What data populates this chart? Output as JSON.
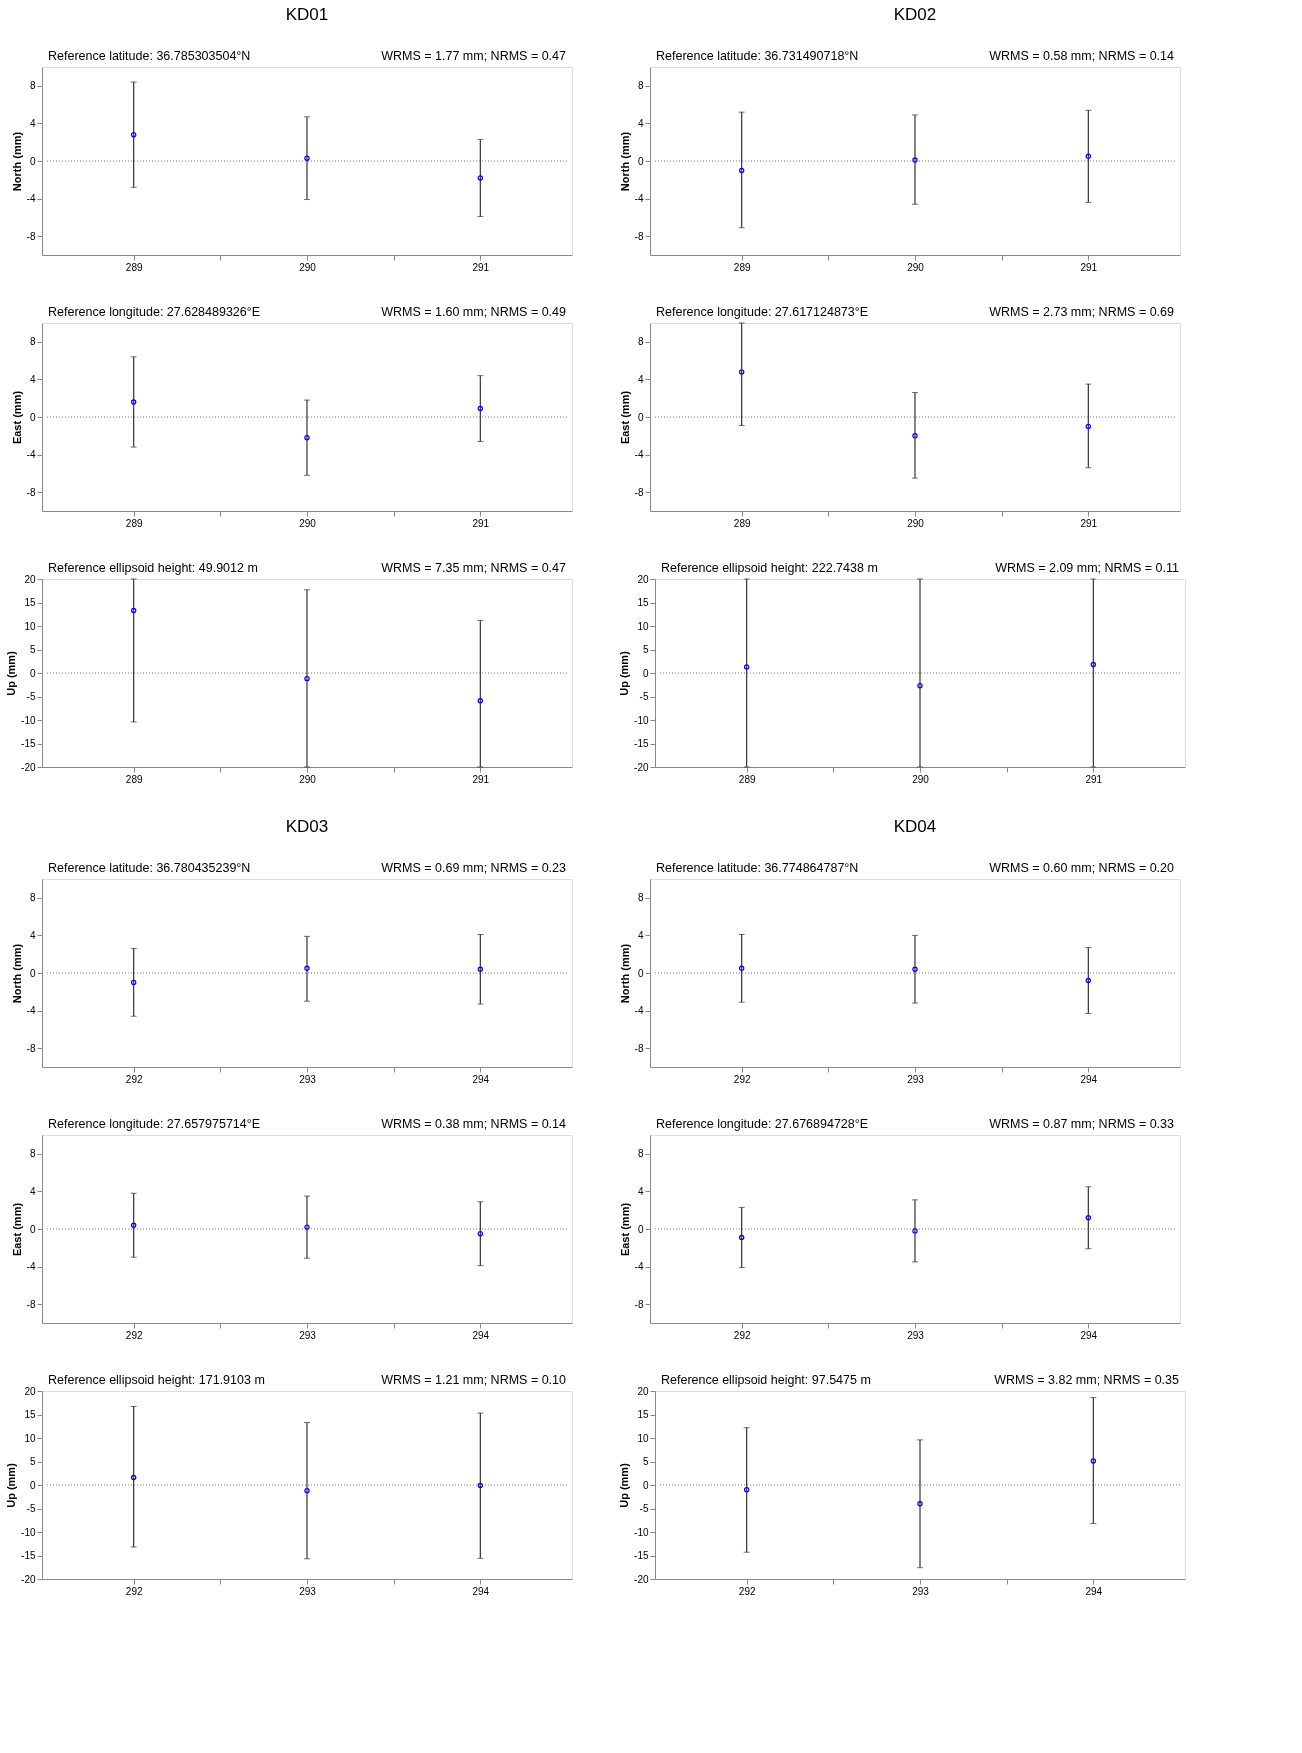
{
  "chart_data": [
    {
      "type": "scatter",
      "title": "KD01",
      "subtitle": "Reference latitude: 36.785303504°N",
      "annotations": [
        "WRMS = 1.77 mm; NRMS = 0.47"
      ],
      "ylabel": "North (mm)",
      "x": [
        289,
        290,
        291
      ],
      "xlim": [
        288.5,
        291.5
      ],
      "xticks": [
        289,
        {
          "value": 289.5,
          "label": null
        },
        290,
        {
          "value": 290.5,
          "label": null
        },
        291
      ],
      "ylim": [
        -10,
        10
      ],
      "yticks": [
        -8,
        -4,
        0,
        4,
        8
      ],
      "marker": "circle",
      "ref_lines": [
        {
          "axis": "y",
          "value": 0,
          "line_style": "dotted"
        }
      ],
      "series": [
        {
          "color": "#0000ff",
          "values": [
            2.8,
            0.3,
            -1.8
          ],
          "errors": [
            [
              -2.8,
              8.4
            ],
            [
              -4.1,
              4.7
            ],
            [
              -5.9,
              2.3
            ]
          ]
        }
      ]
    },
    {
      "type": "scatter",
      "title": "KD02",
      "subtitle": "Reference latitude: 36.731490718°N",
      "annotations": [
        "WRMS = 0.58 mm; NRMS = 0.14"
      ],
      "ylabel": "North (mm)",
      "x": [
        289,
        290,
        291
      ],
      "xlim": [
        288.5,
        291.5
      ],
      "xticks": [
        289,
        {
          "value": 289.5,
          "label": null
        },
        290,
        {
          "value": 290.5,
          "label": null
        },
        291
      ],
      "ylim": [
        -10,
        10
      ],
      "yticks": [
        -8,
        -4,
        0,
        4,
        8
      ],
      "marker": "circle",
      "ref_lines": [
        {
          "axis": "y",
          "value": 0,
          "line_style": "dotted"
        }
      ],
      "series": [
        {
          "color": "#0000ff",
          "values": [
            -1.0,
            0.1,
            0.5
          ],
          "errors": [
            [
              -7.1,
              5.2
            ],
            [
              -4.6,
              4.9
            ],
            [
              -4.4,
              5.4
            ]
          ]
        }
      ]
    },
    {
      "type": "scatter",
      "subtitle": "Reference longitude: 27.628489326°E",
      "annotations": [
        "WRMS = 1.60 mm; NRMS = 0.49"
      ],
      "ylabel": "East (mm)",
      "x": [
        289,
        290,
        291
      ],
      "xlim": [
        288.5,
        291.5
      ],
      "xticks": [
        289,
        {
          "value": 289.5,
          "label": null
        },
        290,
        {
          "value": 290.5,
          "label": null
        },
        291
      ],
      "ylim": [
        -10,
        10
      ],
      "yticks": [
        -8,
        -4,
        0,
        4,
        8
      ],
      "marker": "circle",
      "ref_lines": [
        {
          "axis": "y",
          "value": 0,
          "line_style": "dotted"
        }
      ],
      "series": [
        {
          "color": "#0000ff",
          "values": [
            1.6,
            -2.2,
            0.9
          ],
          "errors": [
            [
              -3.2,
              6.4
            ],
            [
              -6.2,
              1.8
            ],
            [
              -2.6,
              4.4
            ]
          ]
        }
      ]
    },
    {
      "type": "scatter",
      "subtitle": "Reference longitude: 27.617124873°E",
      "annotations": [
        "WRMS = 2.73 mm; NRMS = 0.69"
      ],
      "ylabel": "East (mm)",
      "x": [
        289,
        290,
        291
      ],
      "xlim": [
        288.5,
        291.5
      ],
      "xticks": [
        289,
        {
          "value": 289.5,
          "label": null
        },
        290,
        {
          "value": 290.5,
          "label": null
        },
        291
      ],
      "ylim": [
        -10,
        10
      ],
      "yticks": [
        -8,
        -4,
        0,
        4,
        8
      ],
      "marker": "circle",
      "ref_lines": [
        {
          "axis": "y",
          "value": 0,
          "line_style": "dotted"
        }
      ],
      "series": [
        {
          "color": "#0000ff",
          "values": [
            4.8,
            -2.0,
            -1.0
          ],
          "errors": [
            [
              -0.9,
              10
            ],
            [
              -6.5,
              2.6
            ],
            [
              -5.4,
              3.5
            ]
          ]
        }
      ]
    },
    {
      "type": "scatter",
      "subtitle": "Reference ellipsoid height: 49.9012 m",
      "annotations": [
        "WRMS = 7.35 mm; NRMS = 0.47"
      ],
      "ylabel": "Up (mm)",
      "x": [
        289,
        290,
        291
      ],
      "xlim": [
        288.5,
        291.5
      ],
      "xticks": [
        289,
        {
          "value": 289.5,
          "label": null
        },
        290,
        {
          "value": 290.5,
          "label": null
        },
        291
      ],
      "ylim": [
        -20,
        20
      ],
      "yticks": [
        -20,
        -15,
        -10,
        -5,
        0,
        5,
        10,
        15,
        20
      ],
      "marker": "circle",
      "ref_lines": [
        {
          "axis": "y",
          "value": 0,
          "line_style": "dotted"
        }
      ],
      "series": [
        {
          "color": "#0000ff",
          "values": [
            13.3,
            -1.2,
            -5.9
          ],
          "errors": [
            [
              -10.4,
              20
            ],
            [
              -20,
              17.7
            ],
            [
              -20,
              11.2
            ]
          ]
        }
      ]
    },
    {
      "type": "scatter",
      "subtitle": "Reference ellipsoid height: 222.7438 m",
      "annotations": [
        "WRMS = 2.09 mm; NRMS = 0.11"
      ],
      "ylabel": "Up (mm)",
      "x": [
        289,
        290,
        291
      ],
      "xlim": [
        288.5,
        291.5
      ],
      "xticks": [
        289,
        {
          "value": 289.5,
          "label": null
        },
        290,
        {
          "value": 290.5,
          "label": null
        },
        291
      ],
      "ylim": [
        -20,
        20
      ],
      "yticks": [
        -20,
        -15,
        -10,
        -5,
        0,
        5,
        10,
        15,
        20
      ],
      "marker": "circle",
      "ref_lines": [
        {
          "axis": "y",
          "value": 0,
          "line_style": "dotted"
        }
      ],
      "series": [
        {
          "color": "#0000ff",
          "values": [
            1.3,
            -2.7,
            1.8
          ],
          "errors": [
            [
              -20,
              20
            ],
            [
              -20,
              20
            ],
            [
              -20,
              20
            ]
          ]
        }
      ]
    },
    {
      "type": "scatter",
      "title": "KD03",
      "subtitle": "Reference latitude: 36.780435239°N",
      "annotations": [
        "WRMS = 0.69 mm; NRMS = 0.23"
      ],
      "ylabel": "North (mm)",
      "x": [
        292,
        293,
        294
      ],
      "xlim": [
        291.5,
        294.5
      ],
      "xticks": [
        292,
        {
          "value": 292.5,
          "label": null
        },
        293,
        {
          "value": 293.5,
          "label": null
        },
        294
      ],
      "ylim": [
        -10,
        10
      ],
      "yticks": [
        -8,
        -4,
        0,
        4,
        8
      ],
      "marker": "circle",
      "ref_lines": [
        {
          "axis": "y",
          "value": 0,
          "line_style": "dotted"
        }
      ],
      "series": [
        {
          "color": "#0000ff",
          "values": [
            -1.0,
            0.5,
            0.4
          ],
          "errors": [
            [
              -4.6,
              2.6
            ],
            [
              -3.0,
              3.9
            ],
            [
              -3.3,
              4.1
            ]
          ]
        }
      ]
    },
    {
      "type": "scatter",
      "title": "KD04",
      "subtitle": "Reference latitude: 36.774864787°N",
      "annotations": [
        "WRMS = 0.60 mm; NRMS = 0.20"
      ],
      "ylabel": "North (mm)",
      "x": [
        292,
        293,
        294
      ],
      "xlim": [
        291.5,
        294.5
      ],
      "xticks": [
        292,
        {
          "value": 292.5,
          "label": null
        },
        293,
        {
          "value": 293.5,
          "label": null
        },
        294
      ],
      "ylim": [
        -10,
        10
      ],
      "yticks": [
        -8,
        -4,
        0,
        4,
        8
      ],
      "marker": "circle",
      "ref_lines": [
        {
          "axis": "y",
          "value": 0,
          "line_style": "dotted"
        }
      ],
      "series": [
        {
          "color": "#0000ff",
          "values": [
            0.5,
            0.4,
            -0.8
          ],
          "errors": [
            [
              -3.1,
              4.1
            ],
            [
              -3.2,
              4.0
            ],
            [
              -4.3,
              2.7
            ]
          ]
        }
      ]
    },
    {
      "type": "scatter",
      "subtitle": "Reference longitude: 27.657975714°E",
      "annotations": [
        "WRMS = 0.38 mm; NRMS = 0.14"
      ],
      "ylabel": "East (mm)",
      "x": [
        292,
        293,
        294
      ],
      "xlim": [
        291.5,
        294.5
      ],
      "xticks": [
        292,
        {
          "value": 292.5,
          "label": null
        },
        293,
        {
          "value": 293.5,
          "label": null
        },
        294
      ],
      "ylim": [
        -10,
        10
      ],
      "yticks": [
        -8,
        -4,
        0,
        4,
        8
      ],
      "marker": "circle",
      "ref_lines": [
        {
          "axis": "y",
          "value": 0,
          "line_style": "dotted"
        }
      ],
      "series": [
        {
          "color": "#0000ff",
          "values": [
            0.4,
            0.2,
            -0.5
          ],
          "errors": [
            [
              -3.0,
              3.8
            ],
            [
              -3.1,
              3.5
            ],
            [
              -3.9,
              2.9
            ]
          ]
        }
      ]
    },
    {
      "type": "scatter",
      "subtitle": "Reference longitude: 27.676894728°E",
      "annotations": [
        "WRMS = 0.87 mm; NRMS = 0.33"
      ],
      "ylabel": "East (mm)",
      "x": [
        292,
        293,
        294
      ],
      "xlim": [
        291.5,
        294.5
      ],
      "xticks": [
        292,
        {
          "value": 292.5,
          "label": null
        },
        293,
        {
          "value": 293.5,
          "label": null
        },
        294
      ],
      "ylim": [
        -10,
        10
      ],
      "yticks": [
        -8,
        -4,
        0,
        4,
        8
      ],
      "marker": "circle",
      "ref_lines": [
        {
          "axis": "y",
          "value": 0,
          "line_style": "dotted"
        }
      ],
      "series": [
        {
          "color": "#0000ff",
          "values": [
            -0.9,
            -0.2,
            1.2
          ],
          "errors": [
            [
              -4.1,
              2.3
            ],
            [
              -3.5,
              3.1
            ],
            [
              -2.1,
              4.5
            ]
          ]
        }
      ]
    },
    {
      "type": "scatter",
      "subtitle": "Reference ellipsoid height: 171.9103 m",
      "annotations": [
        "WRMS = 1.21 mm; NRMS = 0.10"
      ],
      "ylabel": "Up (mm)",
      "x": [
        292,
        293,
        294
      ],
      "xlim": [
        291.5,
        294.5
      ],
      "xticks": [
        292,
        {
          "value": 292.5,
          "label": null
        },
        293,
        {
          "value": 293.5,
          "label": null
        },
        294
      ],
      "ylim": [
        -20,
        20
      ],
      "yticks": [
        -20,
        -15,
        -10,
        -5,
        0,
        5,
        10,
        15,
        20
      ],
      "marker": "circle",
      "ref_lines": [
        {
          "axis": "y",
          "value": 0,
          "line_style": "dotted"
        }
      ],
      "series": [
        {
          "color": "#0000ff",
          "values": [
            1.6,
            -1.2,
            -0.1
          ],
          "errors": [
            [
              -13.2,
              16.7
            ],
            [
              -15.7,
              13.3
            ],
            [
              -15.6,
              15.3
            ]
          ]
        }
      ]
    },
    {
      "type": "scatter",
      "subtitle": "Reference ellipsoid height: 97.5475 m",
      "annotations": [
        "WRMS = 3.82 mm; NRMS = 0.35"
      ],
      "ylabel": "Up (mm)",
      "x": [
        292,
        293,
        294
      ],
      "xlim": [
        291.5,
        294.5
      ],
      "xticks": [
        292,
        {
          "value": 292.5,
          "label": null
        },
        293,
        {
          "value": 293.5,
          "label": null
        },
        294
      ],
      "ylim": [
        -20,
        20
      ],
      "yticks": [
        -20,
        -15,
        -10,
        -5,
        0,
        5,
        10,
        15,
        20
      ],
      "marker": "circle",
      "ref_lines": [
        {
          "axis": "y",
          "value": 0,
          "line_style": "dotted"
        }
      ],
      "series": [
        {
          "color": "#0000ff",
          "values": [
            -1.0,
            -4.0,
            5.1
          ],
          "errors": [
            [
              -14.3,
              12.2
            ],
            [
              -17.6,
              9.6
            ],
            [
              -8.2,
              18.6
            ]
          ]
        }
      ]
    }
  ]
}
